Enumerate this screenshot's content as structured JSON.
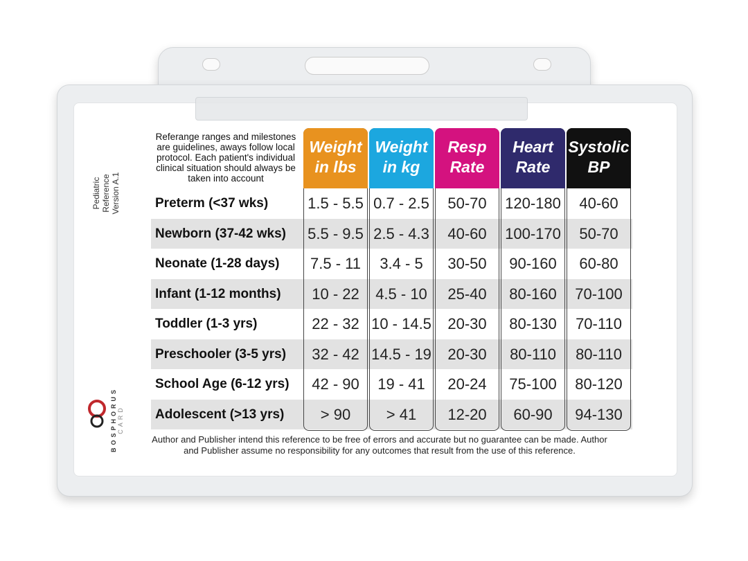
{
  "side_label": [
    "Pediatric Reference",
    "Version A.1"
  ],
  "brand": {
    "name": "BOSPHORUS",
    "sub": "CARD"
  },
  "note": "Referange ranges and milestones are guidelines, aways follow local protocol. Each patient's individual clinical situation should always be taken into account",
  "table": {
    "columns": [
      {
        "lines": [
          "Weight",
          "in lbs"
        ],
        "color": "#e8921f"
      },
      {
        "lines": [
          "Weight",
          "in kg"
        ],
        "color": "#1ca7df"
      },
      {
        "lines": [
          "Resp",
          "Rate"
        ],
        "color": "#d4127f"
      },
      {
        "lines": [
          "Heart",
          "Rate"
        ],
        "color": "#2f2a6c"
      },
      {
        "lines": [
          "Systolic",
          "BP"
        ],
        "color": "#111111"
      }
    ],
    "rows": [
      {
        "label": "Preterm (<37 wks)",
        "cells": [
          "1.5 - 5.5",
          "0.7 - 2.5",
          "50-70",
          "120-180",
          "40-60"
        ]
      },
      {
        "label": "Newborn (37-42 wks)",
        "cells": [
          "5.5 - 9.5",
          "2.5 - 4.3",
          "40-60",
          "100-170",
          "50-70"
        ]
      },
      {
        "label": "Neonate (1-28 days)",
        "cells": [
          "7.5 - 11",
          "3.4 - 5",
          "30-50",
          "90-160",
          "60-80"
        ]
      },
      {
        "label": "Infant (1-12 months)",
        "cells": [
          "10 - 22",
          "4.5 - 10",
          "25-40",
          "80-160",
          "70-100"
        ]
      },
      {
        "label": "Toddler (1-3 yrs)",
        "cells": [
          "22 - 32",
          "10 - 14.5",
          "20-30",
          "80-130",
          "70-110"
        ]
      },
      {
        "label": "Preschooler (3-5 yrs)",
        "cells": [
          "32 - 42",
          "14.5 - 19",
          "20-30",
          "80-110",
          "80-110"
        ]
      },
      {
        "label": "School Age (6-12 yrs)",
        "cells": [
          "42 - 90",
          "19 - 41",
          "20-24",
          "75-100",
          "80-120"
        ]
      },
      {
        "label": "Adolescent (>13 yrs)",
        "cells": [
          "> 90",
          "> 41",
          "12-20",
          "60-90",
          "94-130"
        ]
      }
    ]
  },
  "footer": "Author and Publisher intend this reference to be free of errors and accurate but no guarantee can be made. Author and Publisher assume no responsibility for any outcomes that result from the use of this reference."
}
